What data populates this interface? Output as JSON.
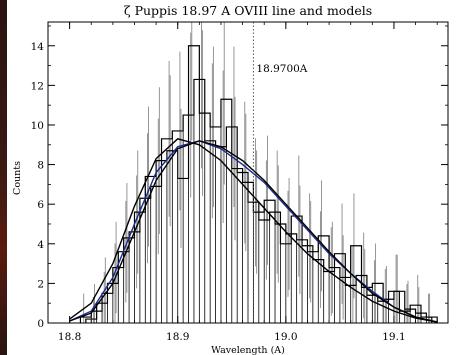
{
  "chart_data": {
    "type": "line",
    "title": "ζ Puppis 18.97 A OVIII line and models",
    "xlabel": "Wavelength (A)",
    "ylabel": "Counts",
    "xlim": [
      18.78,
      19.15
    ],
    "ylim": [
      0,
      15.2
    ],
    "x_ticks": [
      "18.8",
      "18.9",
      "19.0",
      "19.1"
    ],
    "y_ticks": [
      "0",
      "2",
      "4",
      "6",
      "8",
      "10",
      "12",
      "14"
    ],
    "reference_line": {
      "x": 18.97,
      "label": "18.9700A"
    },
    "histogram_series": [
      {
        "name": "",
        "color": "#000000",
        "bins": [
          {
            "x0": 18.81,
            "x1": 18.82,
            "y": 0.3
          },
          {
            "x0": 18.82,
            "x1": 18.83,
            "y": 0.6
          },
          {
            "x0": 18.83,
            "x1": 18.84,
            "y": 1.5
          },
          {
            "x0": 18.84,
            "x1": 18.85,
            "y": 2.8
          },
          {
            "x0": 18.85,
            "x1": 18.86,
            "y": 4.3
          },
          {
            "x0": 18.86,
            "x1": 18.87,
            "y": 5.6
          },
          {
            "x0": 18.87,
            "x1": 18.88,
            "y": 7.4
          },
          {
            "x0": 18.88,
            "x1": 18.89,
            "y": 8.2
          },
          {
            "x0": 18.89,
            "x1": 18.9,
            "y": 8.7
          },
          {
            "x0": 18.9,
            "x1": 18.91,
            "y": 7.3
          },
          {
            "x0": 18.91,
            "x1": 18.92,
            "y": 14.0
          },
          {
            "x0": 18.92,
            "x1": 18.93,
            "y": 10.6
          },
          {
            "x0": 18.93,
            "x1": 18.94,
            "y": 9.9
          },
          {
            "x0": 18.94,
            "x1": 18.95,
            "y": 11.3
          },
          {
            "x0": 18.95,
            "x1": 18.96,
            "y": 7.8
          },
          {
            "x0": 18.96,
            "x1": 18.97,
            "y": 7.1
          },
          {
            "x0": 18.97,
            "x1": 18.98,
            "y": 5.6
          },
          {
            "x0": 18.98,
            "x1": 18.99,
            "y": 6.2
          },
          {
            "x0": 18.99,
            "x1": 19.0,
            "y": 5.0
          },
          {
            "x0": 19.0,
            "x1": 19.01,
            "y": 4.5
          },
          {
            "x0": 19.01,
            "x1": 19.02,
            "y": 4.2
          },
          {
            "x0": 19.02,
            "x1": 19.03,
            "y": 3.6
          },
          {
            "x0": 19.03,
            "x1": 19.04,
            "y": 4.4
          },
          {
            "x0": 19.04,
            "x1": 19.05,
            "y": 2.8
          },
          {
            "x0": 19.05,
            "x1": 19.06,
            "y": 2.3
          },
          {
            "x0": 19.06,
            "x1": 19.07,
            "y": 3.9
          },
          {
            "x0": 19.07,
            "x1": 19.08,
            "y": 1.8
          },
          {
            "x0": 19.08,
            "x1": 19.09,
            "y": 2.0
          },
          {
            "x0": 19.09,
            "x1": 19.1,
            "y": 1.2
          },
          {
            "x0": 19.1,
            "x1": 19.11,
            "y": 1.6
          },
          {
            "x0": 19.11,
            "x1": 19.12,
            "y": 0.7
          },
          {
            "x0": 19.12,
            "x1": 19.13,
            "y": 0.5
          },
          {
            "x0": 19.13,
            "x1": 19.14,
            "y": 0.3
          }
        ]
      },
      {
        "name": "",
        "color": "#000000",
        "bins": [
          {
            "x0": 18.815,
            "x1": 18.825,
            "y": 0.2
          },
          {
            "x0": 18.825,
            "x1": 18.835,
            "y": 1.0
          },
          {
            "x0": 18.835,
            "x1": 18.845,
            "y": 2.0
          },
          {
            "x0": 18.845,
            "x1": 18.855,
            "y": 3.6
          },
          {
            "x0": 18.855,
            "x1": 18.865,
            "y": 4.6
          },
          {
            "x0": 18.865,
            "x1": 18.875,
            "y": 6.3
          },
          {
            "x0": 18.875,
            "x1": 18.885,
            "y": 6.9
          },
          {
            "x0": 18.885,
            "x1": 18.895,
            "y": 9.3
          },
          {
            "x0": 18.895,
            "x1": 18.905,
            "y": 9.7
          },
          {
            "x0": 18.905,
            "x1": 18.915,
            "y": 10.5
          },
          {
            "x0": 18.915,
            "x1": 18.925,
            "y": 12.3
          },
          {
            "x0": 18.925,
            "x1": 18.935,
            "y": 9.2
          },
          {
            "x0": 18.935,
            "x1": 18.945,
            "y": 8.9
          },
          {
            "x0": 18.945,
            "x1": 18.955,
            "y": 9.9
          },
          {
            "x0": 18.955,
            "x1": 18.965,
            "y": 7.6
          },
          {
            "x0": 18.965,
            "x1": 18.975,
            "y": 6.1
          },
          {
            "x0": 18.975,
            "x1": 18.985,
            "y": 5.2
          },
          {
            "x0": 18.985,
            "x1": 18.995,
            "y": 5.6
          },
          {
            "x0": 18.995,
            "x1": 19.005,
            "y": 4.0
          },
          {
            "x0": 19.005,
            "x1": 19.015,
            "y": 5.4
          },
          {
            "x0": 19.015,
            "x1": 19.025,
            "y": 3.9
          },
          {
            "x0": 19.025,
            "x1": 19.035,
            "y": 3.2
          },
          {
            "x0": 19.035,
            "x1": 19.045,
            "y": 2.6
          },
          {
            "x0": 19.045,
            "x1": 19.055,
            "y": 3.5
          },
          {
            "x0": 19.055,
            "x1": 19.065,
            "y": 1.9
          },
          {
            "x0": 19.065,
            "x1": 19.075,
            "y": 2.4
          },
          {
            "x0": 19.075,
            "x1": 19.085,
            "y": 1.4
          },
          {
            "x0": 19.085,
            "x1": 19.095,
            "y": 1.1
          },
          {
            "x0": 19.095,
            "x1": 19.105,
            "y": 1.6
          },
          {
            "x0": 19.105,
            "x1": 19.115,
            "y": 0.6
          },
          {
            "x0": 19.115,
            "x1": 19.125,
            "y": 0.9
          },
          {
            "x0": 19.125,
            "x1": 19.135,
            "y": 0.3
          }
        ]
      }
    ],
    "model_series": [
      {
        "name": "",
        "color": "#000000",
        "points": [
          [
            18.8,
            0.2
          ],
          [
            18.82,
            1.0
          ],
          [
            18.84,
            3.0
          ],
          [
            18.86,
            5.9
          ],
          [
            18.88,
            8.3
          ],
          [
            18.9,
            9.3
          ],
          [
            18.92,
            9.0
          ],
          [
            18.94,
            8.2
          ],
          [
            18.96,
            7.0
          ],
          [
            18.98,
            5.8
          ],
          [
            19.0,
            4.6
          ],
          [
            19.02,
            3.5
          ],
          [
            19.04,
            2.6
          ],
          [
            19.06,
            1.8
          ],
          [
            19.08,
            1.1
          ],
          [
            19.1,
            0.6
          ],
          [
            19.12,
            0.25
          ],
          [
            19.14,
            0.05
          ]
        ]
      },
      {
        "name": "",
        "color": "#1a2a8c",
        "points": [
          [
            18.8,
            0.1
          ],
          [
            18.82,
            0.6
          ],
          [
            18.84,
            2.3
          ],
          [
            18.86,
            5.0
          ],
          [
            18.88,
            7.6
          ],
          [
            18.9,
            8.9
          ],
          [
            18.92,
            9.2
          ],
          [
            18.94,
            8.8
          ],
          [
            18.96,
            8.0
          ],
          [
            18.98,
            7.1
          ],
          [
            19.0,
            5.9
          ],
          [
            19.02,
            4.7
          ],
          [
            19.04,
            3.5
          ],
          [
            19.06,
            2.5
          ],
          [
            19.08,
            1.6
          ],
          [
            19.1,
            0.8
          ],
          [
            19.12,
            0.3
          ],
          [
            19.14,
            0.05
          ]
        ]
      },
      {
        "name": "",
        "color": "#000000",
        "points": [
          [
            18.8,
            0.1
          ],
          [
            18.82,
            0.5
          ],
          [
            18.84,
            2.0
          ],
          [
            18.86,
            4.6
          ],
          [
            18.88,
            7.2
          ],
          [
            18.9,
            8.8
          ],
          [
            18.92,
            9.2
          ],
          [
            18.94,
            8.9
          ],
          [
            18.96,
            8.2
          ],
          [
            18.98,
            7.2
          ],
          [
            19.0,
            6.0
          ],
          [
            19.02,
            4.8
          ],
          [
            19.04,
            3.6
          ],
          [
            19.06,
            2.5
          ],
          [
            19.08,
            1.5
          ],
          [
            19.1,
            0.8
          ],
          [
            19.12,
            0.3
          ],
          [
            19.14,
            0.05
          ]
        ]
      }
    ]
  }
}
